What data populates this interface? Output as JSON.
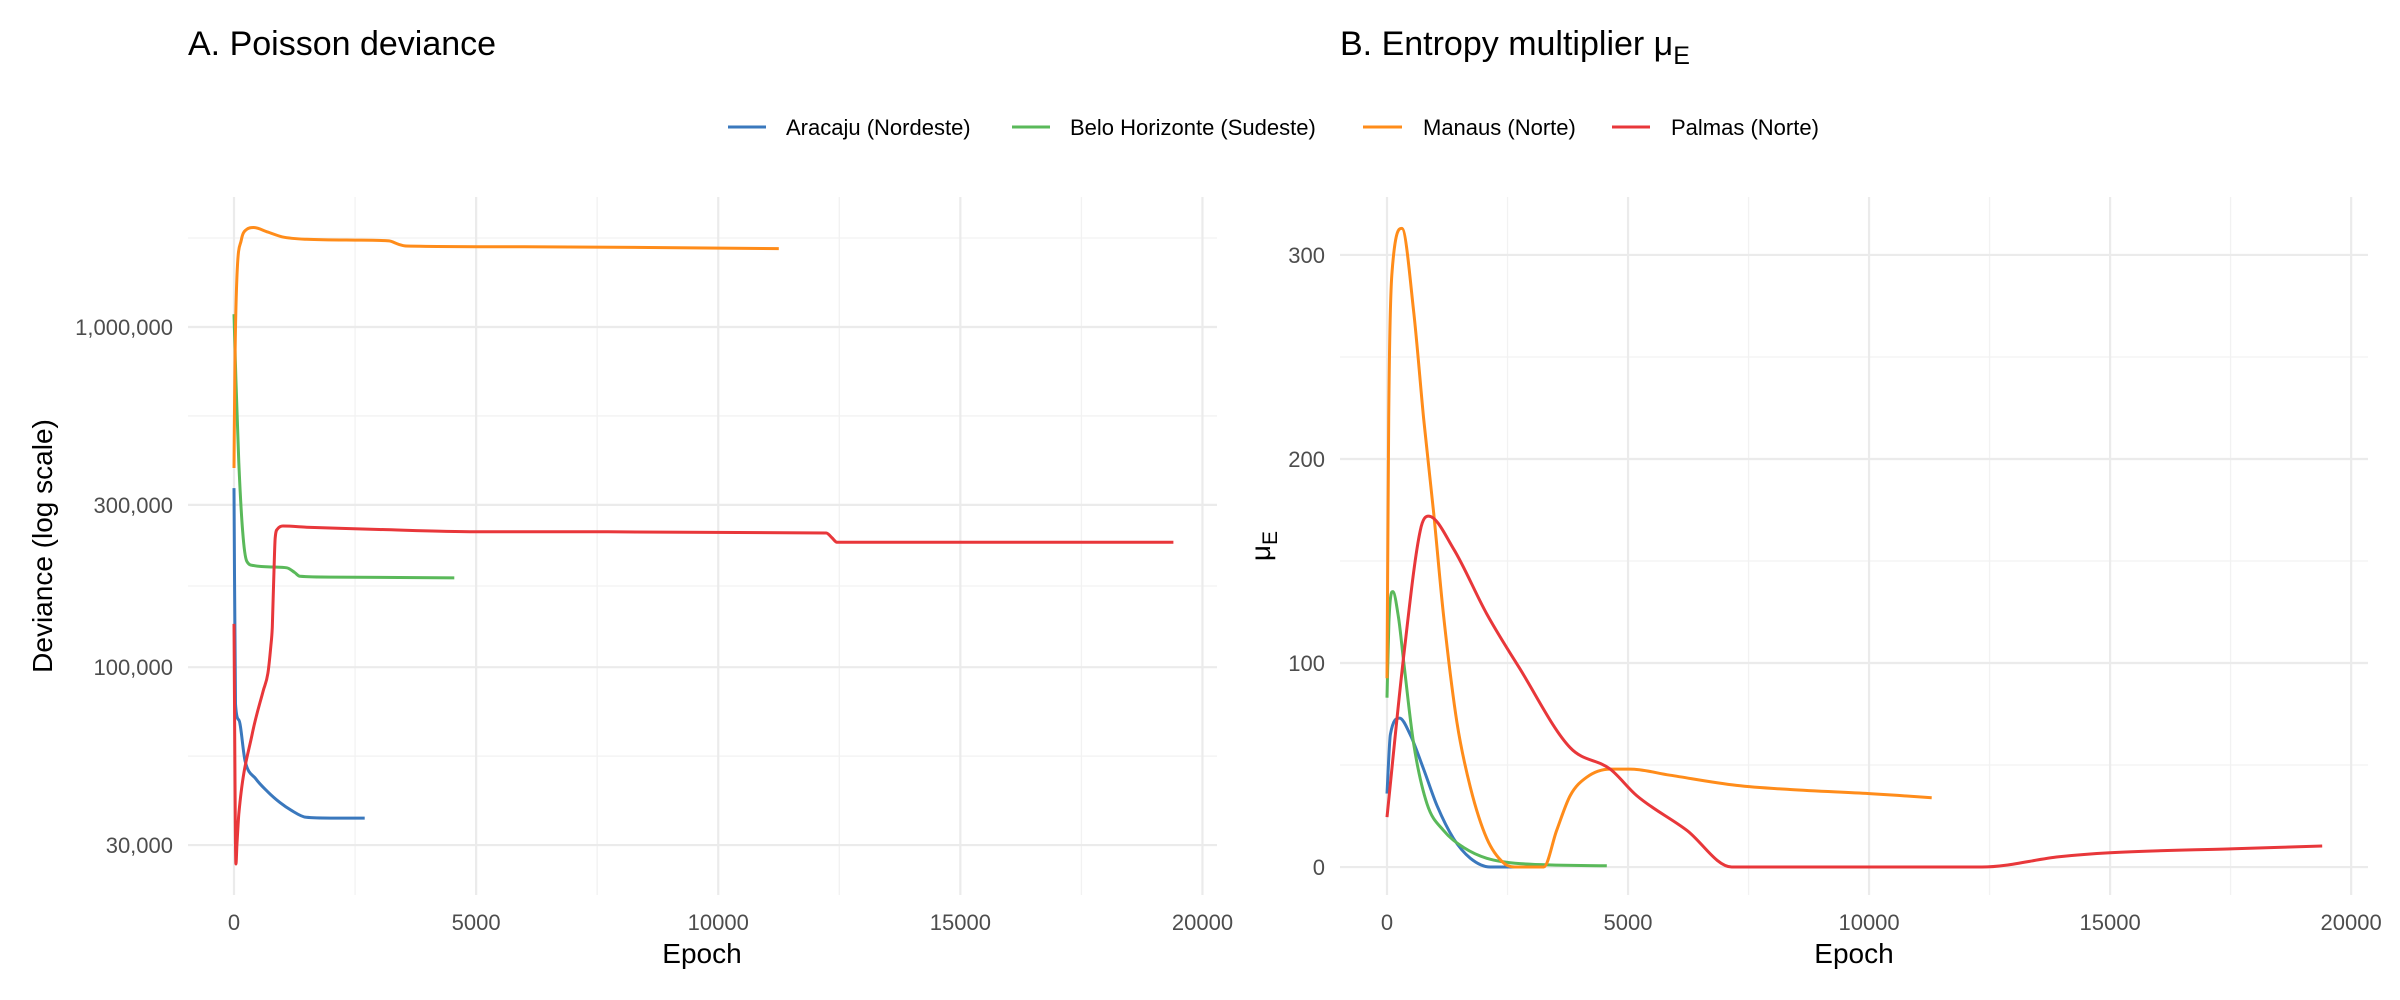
{
  "legend": {
    "position": "top",
    "items": [
      {
        "label": "Aracaju (Nordeste)",
        "color": "#3a78bd"
      },
      {
        "label": "Belo Horizonte (Sudeste)",
        "color": "#5ab95a"
      },
      {
        "label": "Manaus (Norte)",
        "color": "#ff8c1a"
      },
      {
        "label": "Palmas (Norte)",
        "color": "#e8373a"
      }
    ]
  },
  "chart_data": [
    {
      "type": "line",
      "title": "A. Poisson deviance",
      "xlabel": "Epoch",
      "ylabel": "Deviance (log scale)",
      "yscale": "log",
      "xlim": [
        -950,
        20300
      ],
      "ylim": [
        21400,
        2410000
      ],
      "grid": true,
      "x_ticks": [
        0,
        5000,
        10000,
        15000,
        20000
      ],
      "x_tick_labels": [
        "0",
        "5000",
        "10000",
        "15000",
        "20000"
      ],
      "y_ticks": [
        30000,
        100000,
        300000,
        1000000
      ],
      "y_tick_labels": [
        "30,000",
        "100,000",
        "300,000",
        "1,000,000"
      ],
      "series": [
        {
          "name": "Aracaju (Nordeste)",
          "points": [
            [
              0,
              336000
            ],
            [
              30,
              78000
            ],
            [
              100,
              70000
            ],
            [
              230,
              53000
            ],
            [
              450,
              47000
            ],
            [
              700,
              43000
            ],
            [
              950,
              40000
            ],
            [
              1180,
              38000
            ],
            [
              1490,
              36200
            ],
            [
              2000,
              36000
            ],
            [
              2700,
              36000
            ]
          ]
        },
        {
          "name": "Belo Horizonte (Sudeste)",
          "points": [
            [
              0,
              1090000
            ],
            [
              40,
              700000
            ],
            [
              100,
              400000
            ],
            [
              180,
              250000
            ],
            [
              262,
              205000
            ],
            [
              400,
              199000
            ],
            [
              800,
              197000
            ],
            [
              1090,
              196000
            ],
            [
              1250,
              190000
            ],
            [
              1360,
              185000
            ],
            [
              2000,
              184000
            ],
            [
              4550,
              183000
            ]
          ]
        },
        {
          "name": "Manaus (Norte)",
          "points": [
            [
              0,
              385000
            ],
            [
              20,
              800000
            ],
            [
              60,
              1400000
            ],
            [
              150,
              1800000
            ],
            [
              250,
              1930000
            ],
            [
              400,
              1960000
            ],
            [
              700,
              1900000
            ],
            [
              1000,
              1840000
            ],
            [
              1500,
              1810000
            ],
            [
              2500,
              1800000
            ],
            [
              3200,
              1790000
            ],
            [
              3400,
              1750000
            ],
            [
              3550,
              1730000
            ],
            [
              6000,
              1720000
            ],
            [
              11250,
              1700000
            ]
          ]
        },
        {
          "name": "Palmas (Norte)",
          "points": [
            [
              0,
              134000
            ],
            [
              40,
              26400
            ],
            [
              60,
              30000
            ],
            [
              100,
              37000
            ],
            [
              380,
              64000
            ],
            [
              600,
              85000
            ],
            [
              700,
              96000
            ],
            [
              760,
              115000
            ],
            [
              790,
              131000
            ],
            [
              820,
              180000
            ],
            [
              850,
              240000
            ],
            [
              900,
              255000
            ],
            [
              1010,
              260000
            ],
            [
              1500,
              258000
            ],
            [
              3000,
              254000
            ],
            [
              5000,
              250000
            ],
            [
              7000,
              250000
            ],
            [
              12230,
              248000
            ],
            [
              12350,
              240000
            ],
            [
              12450,
              233000
            ],
            [
              19400,
              233000
            ]
          ]
        }
      ]
    },
    {
      "type": "line",
      "title": "B. Entropy multiplier μ",
      "title_subscript": "E",
      "xlabel": "Epoch",
      "ylabel": "μ",
      "ylabel_subscript": "E",
      "yscale": "linear",
      "xlim": [
        -975,
        20350
      ],
      "ylim": [
        -13.7,
        328.4
      ],
      "grid": true,
      "x_ticks": [
        0,
        5000,
        10000,
        15000,
        20000
      ],
      "x_tick_labels": [
        "0",
        "5000",
        "10000",
        "15000",
        "20000"
      ],
      "y_ticks": [
        0,
        100,
        200,
        300
      ],
      "y_tick_labels": [
        "0",
        "100",
        "200",
        "300"
      ],
      "series": [
        {
          "name": "Aracaju (Nordeste)",
          "points": [
            [
              0,
              36
            ],
            [
              70,
              65
            ],
            [
              260,
              73
            ],
            [
              480,
              65
            ],
            [
              760,
              48
            ],
            [
              1040,
              30
            ],
            [
              1380,
              14
            ],
            [
              1730,
              4.3
            ],
            [
              2140,
              0
            ],
            [
              2690,
              0
            ]
          ]
        },
        {
          "name": "Belo Horizonte (Sudeste)",
          "points": [
            [
              0,
              83
            ],
            [
              40,
              120
            ],
            [
              120,
              135
            ],
            [
              240,
              122
            ],
            [
              345,
              101
            ],
            [
              550,
              61
            ],
            [
              830,
              31
            ],
            [
              1170,
              18
            ],
            [
              1590,
              9.6
            ],
            [
              2070,
              4.3
            ],
            [
              2760,
              1.7
            ],
            [
              4560,
              0.6
            ]
          ]
        },
        {
          "name": "Manaus (Norte)",
          "points": [
            [
              0,
              92.5
            ],
            [
              35,
              220
            ],
            [
              100,
              290
            ],
            [
              310,
              313
            ],
            [
              550,
              273
            ],
            [
              760,
              220
            ],
            [
              970,
              173
            ],
            [
              1170,
              124
            ],
            [
              1450,
              71
            ],
            [
              1730,
              39
            ],
            [
              2070,
              14
            ],
            [
              2420,
              2
            ],
            [
              2690,
              0
            ],
            [
              3250,
              0
            ],
            [
              3520,
              18
            ],
            [
              3800,
              35
            ],
            [
              4140,
              44
            ],
            [
              4630,
              48
            ],
            [
              5040,
              48
            ],
            [
              5870,
              45
            ],
            [
              7250,
              40
            ],
            [
              8360,
              38
            ],
            [
              10000,
              36
            ],
            [
              11300,
              34
            ]
          ]
        },
        {
          "name": "Palmas (Norte)",
          "points": [
            [
              0,
              24.5
            ],
            [
              345,
              103
            ],
            [
              690,
              165
            ],
            [
              860,
              172
            ],
            [
              1380,
              156
            ],
            [
              2070,
              124
            ],
            [
              2760,
              97
            ],
            [
              3800,
              58.5
            ],
            [
              4630,
              48
            ],
            [
              5180,
              35
            ],
            [
              6220,
              18
            ],
            [
              7150,
              0
            ],
            [
              12340,
              0
            ],
            [
              13940,
              5
            ],
            [
              15000,
              7
            ],
            [
              17570,
              9
            ],
            [
              19400,
              10.3
            ]
          ]
        }
      ]
    }
  ]
}
